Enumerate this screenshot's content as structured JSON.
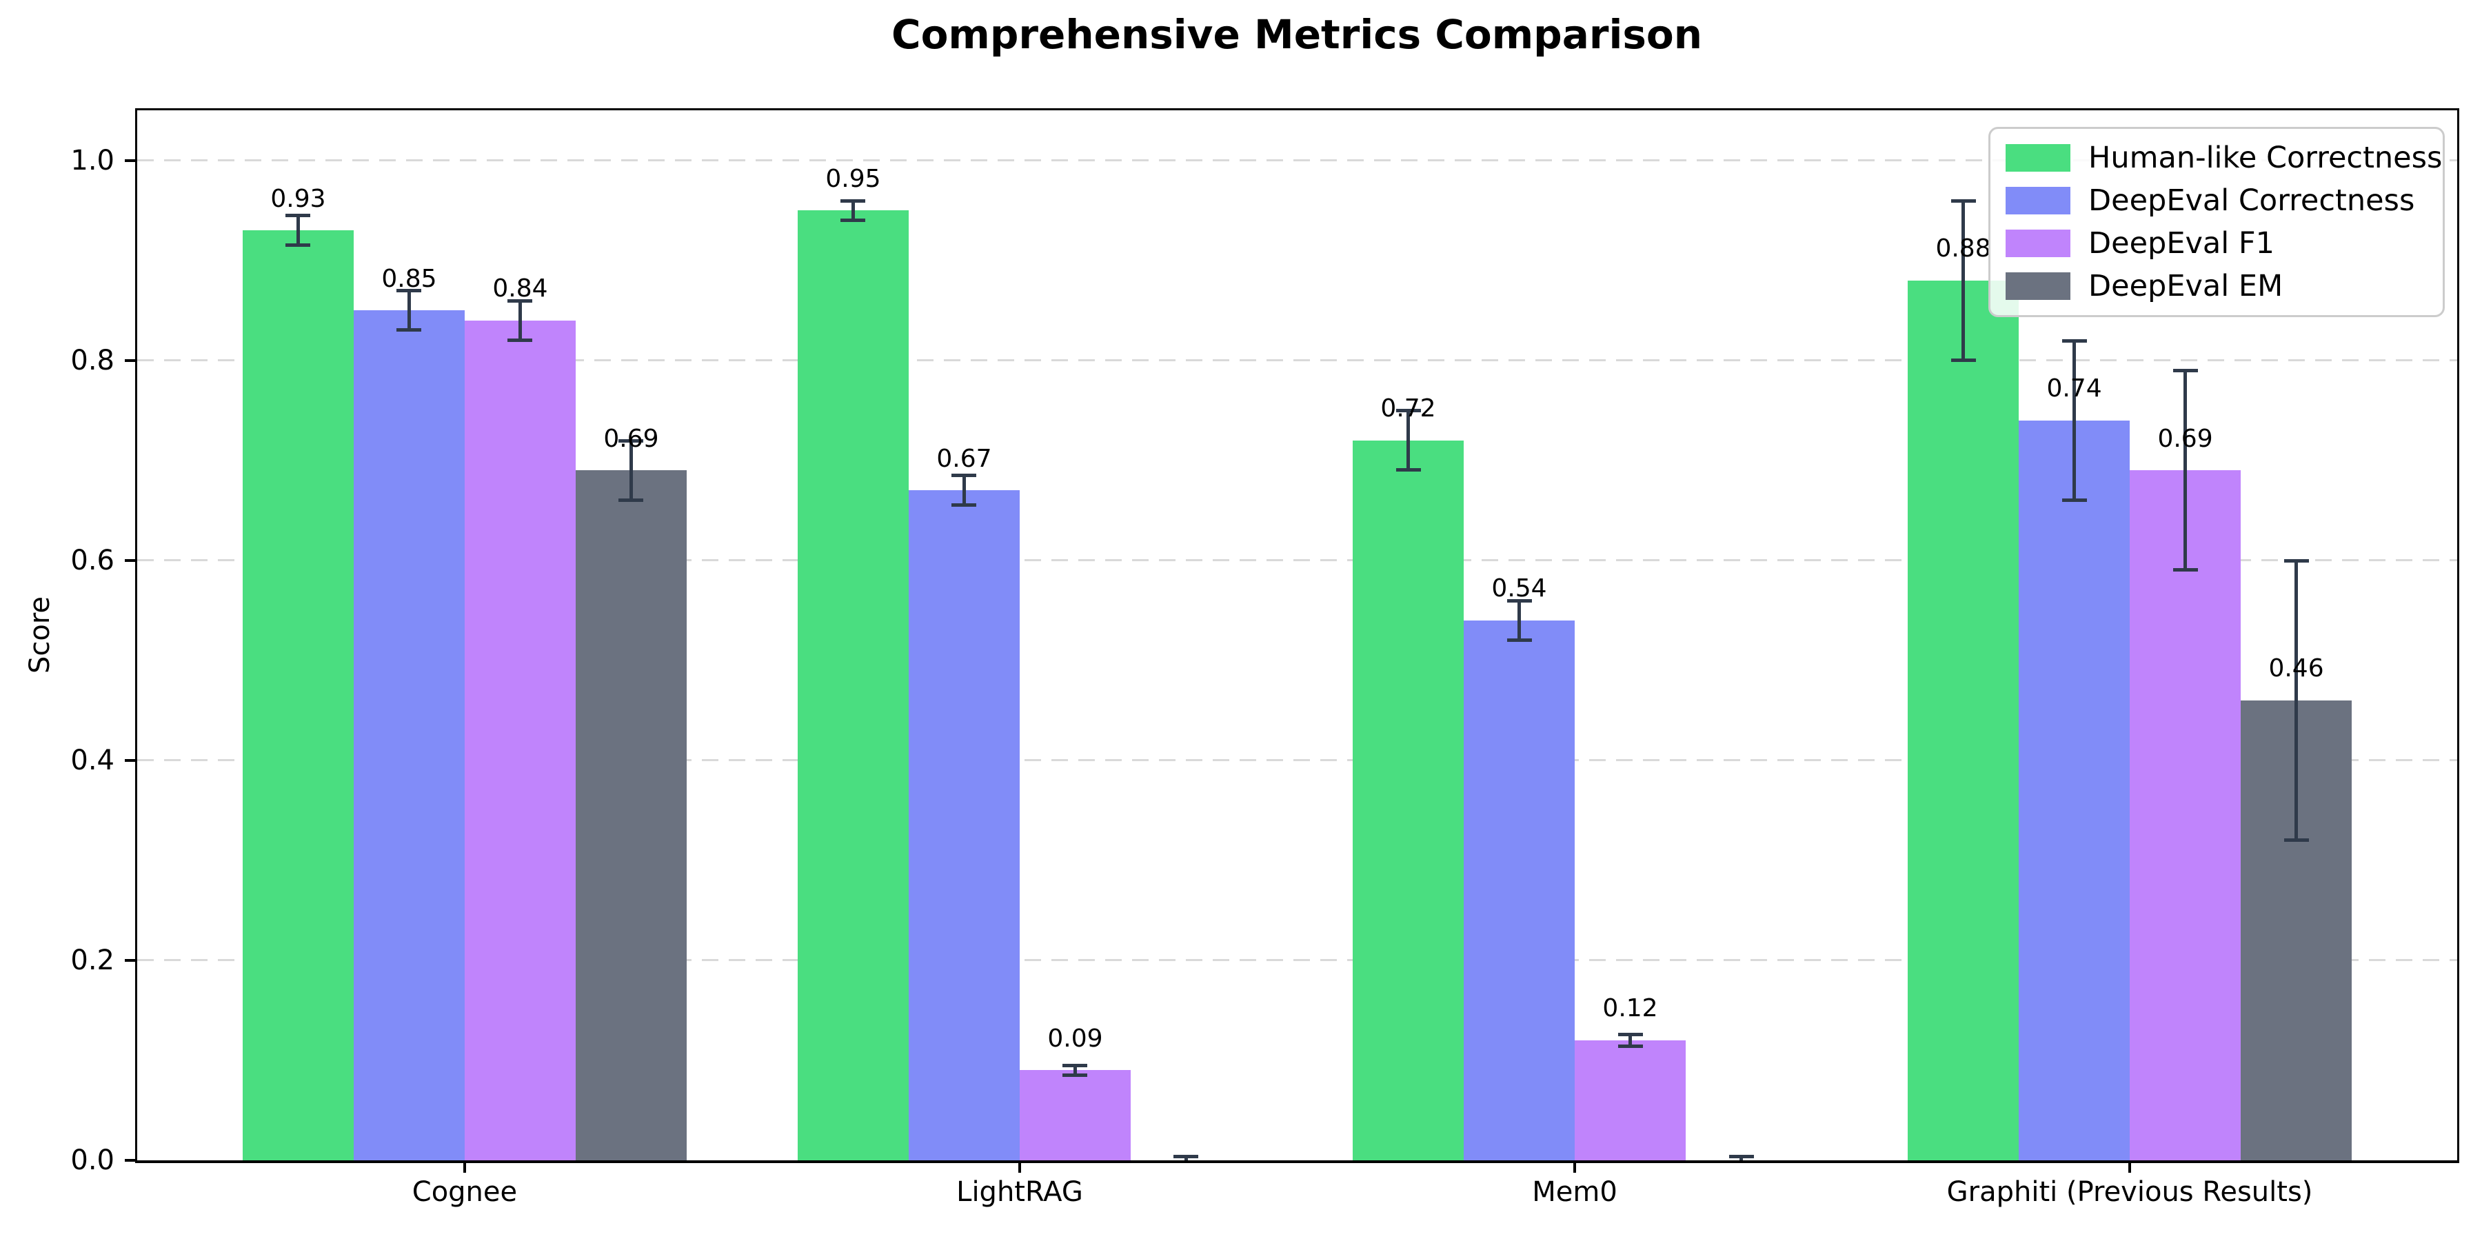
{
  "figure": {
    "title": "Comprehensive Metrics Comparison"
  },
  "chart_data": {
    "type": "bar",
    "title": "Comprehensive Metrics Comparison",
    "xlabel": "",
    "ylabel": "Score",
    "categories": [
      "Cognee",
      "LightRAG",
      "Mem0",
      "Graphiti (Previous Results)"
    ],
    "series": [
      {
        "name": "Human-like Correctness",
        "color": "#4ade80",
        "values": [
          0.93,
          0.95,
          0.72,
          0.88
        ],
        "errors": [
          0.015,
          0.01,
          0.03,
          0.08
        ],
        "labels": [
          "0.93",
          "0.95",
          "0.72",
          "0.88"
        ]
      },
      {
        "name": "DeepEval Correctness",
        "color": "#818cf8",
        "values": [
          0.85,
          0.67,
          0.54,
          0.74
        ],
        "errors": [
          0.02,
          0.015,
          0.02,
          0.08
        ],
        "labels": [
          "0.85",
          "0.67",
          "0.54",
          "0.74"
        ]
      },
      {
        "name": "DeepEval F1",
        "color": "#c084fc",
        "values": [
          0.84,
          0.09,
          0.12,
          0.69
        ],
        "errors": [
          0.02,
          0.005,
          0.006,
          0.1
        ],
        "labels": [
          "0.84",
          "0.09",
          "0.12",
          "0.69"
        ]
      },
      {
        "name": "DeepEval EM",
        "color": "#6b7280",
        "values": [
          0.69,
          0.0,
          0.0,
          0.46
        ],
        "errors": [
          0.03,
          0.004,
          0.004,
          0.14
        ],
        "labels": [
          "0.69",
          null,
          null,
          "0.46"
        ]
      }
    ],
    "yticks": [
      0.0,
      0.2,
      0.4,
      0.6,
      0.8,
      1.0
    ],
    "ytick_labels": [
      "0.0",
      "0.2",
      "0.4",
      "0.6",
      "0.8",
      "1.0"
    ],
    "ylim": [
      0,
      1.05
    ],
    "grid": {
      "axis": "y",
      "style": "dashed",
      "color": "#d9d9d9"
    },
    "legend": {
      "position": "upper right",
      "entries": [
        "Human-like Correctness",
        "DeepEval Correctness",
        "DeepEval F1",
        "DeepEval EM"
      ]
    },
    "error_bar_color": "#2f3a4a"
  }
}
